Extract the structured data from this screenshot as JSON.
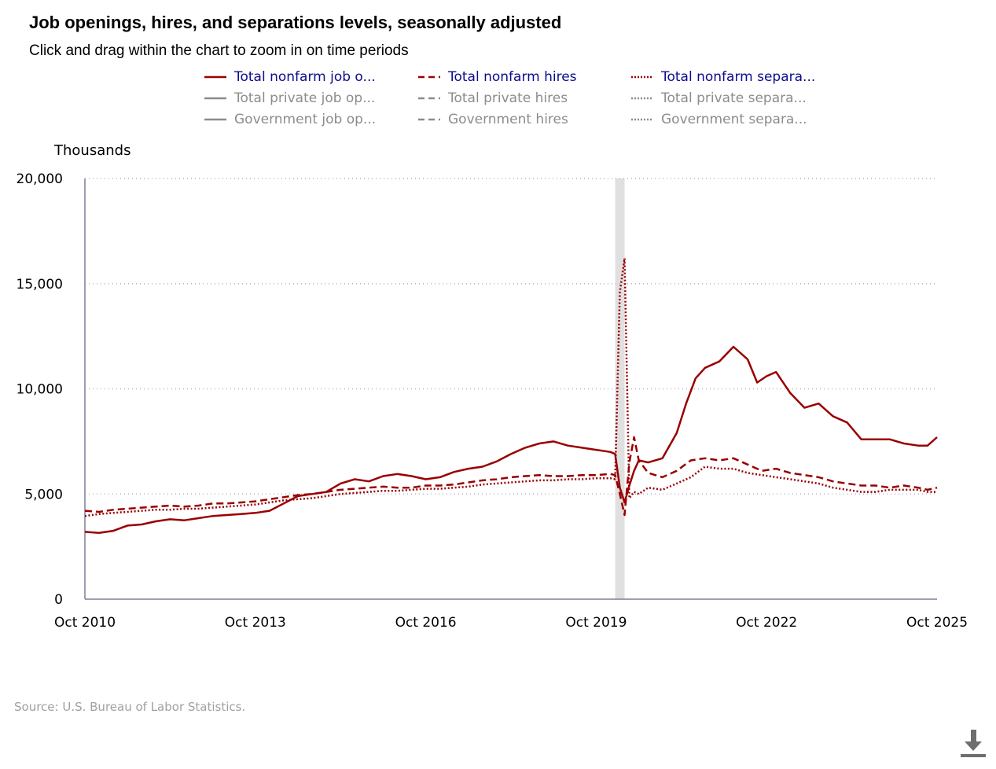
{
  "header": {
    "title": "Job openings, hires, and separations levels, seasonally adjusted",
    "subtitle": "Click and drag within the chart to zoom in on time periods"
  },
  "legend": [
    {
      "label": "Total nonfarm job o...",
      "style": "solid",
      "active": true
    },
    {
      "label": "Total nonfarm hires",
      "style": "dashed",
      "active": true
    },
    {
      "label": "Total nonfarm separa...",
      "style": "dotted",
      "active": true
    },
    {
      "label": "Total private job op...",
      "style": "solid",
      "active": false
    },
    {
      "label": "Total private hires",
      "style": "dashed",
      "active": false
    },
    {
      "label": "Total private separa...",
      "style": "dotted",
      "active": false
    },
    {
      "label": "Government job op...",
      "style": "solid",
      "active": false
    },
    {
      "label": "Government hires",
      "style": "dashed",
      "active": false
    },
    {
      "label": "Government separa...",
      "style": "dotted",
      "active": false
    }
  ],
  "colors": {
    "active_series": "#990000",
    "inactive_series": "#8c8c8c",
    "recession_band": "#e0e0e0",
    "gridline": "#b4b4c8"
  },
  "icons": {
    "download": "download-icon"
  },
  "source": "Source: U.S. Bureau of Labor Statistics.",
  "chart_data": {
    "type": "line",
    "ylabel": "Thousands",
    "xlabel": "",
    "ylim": [
      0,
      20000
    ],
    "y_ticks": [
      "0",
      "5,000",
      "10,000",
      "15,000",
      "20,000"
    ],
    "y_tick_values": [
      0,
      5000,
      10000,
      15000,
      20000
    ],
    "x_ticks": [
      "Oct 2010",
      "Oct 2013",
      "Oct 2016",
      "Oct 2019",
      "Oct 2022",
      "Oct 2025"
    ],
    "x_range": [
      "2010-10",
      "2025-10"
    ],
    "grid": "horizontal dotted",
    "recession_shading": [
      "2020-02",
      "2020-04"
    ],
    "series": [
      {
        "name": "Total nonfarm job o...",
        "style": "solid",
        "points": [
          [
            "2010-10",
            3200
          ],
          [
            "2011-01",
            3150
          ],
          [
            "2011-04",
            3250
          ],
          [
            "2011-07",
            3500
          ],
          [
            "2011-10",
            3550
          ],
          [
            "2012-01",
            3700
          ],
          [
            "2012-04",
            3800
          ],
          [
            "2012-07",
            3750
          ],
          [
            "2012-10",
            3850
          ],
          [
            "2013-01",
            3950
          ],
          [
            "2013-04",
            4000
          ],
          [
            "2013-07",
            4050
          ],
          [
            "2013-10",
            4100
          ],
          [
            "2014-01",
            4200
          ],
          [
            "2014-04",
            4550
          ],
          [
            "2014-07",
            4900
          ],
          [
            "2014-10",
            5000
          ],
          [
            "2015-01",
            5100
          ],
          [
            "2015-04",
            5500
          ],
          [
            "2015-07",
            5700
          ],
          [
            "2015-10",
            5600
          ],
          [
            "2016-01",
            5850
          ],
          [
            "2016-04",
            5950
          ],
          [
            "2016-07",
            5850
          ],
          [
            "2016-10",
            5700
          ],
          [
            "2017-01",
            5800
          ],
          [
            "2017-04",
            6050
          ],
          [
            "2017-07",
            6200
          ],
          [
            "2017-10",
            6300
          ],
          [
            "2018-01",
            6550
          ],
          [
            "2018-04",
            6900
          ],
          [
            "2018-07",
            7200
          ],
          [
            "2018-10",
            7400
          ],
          [
            "2019-01",
            7500
          ],
          [
            "2019-04",
            7300
          ],
          [
            "2019-07",
            7200
          ],
          [
            "2019-10",
            7100
          ],
          [
            "2020-01",
            7000
          ],
          [
            "2020-02",
            6900
          ],
          [
            "2020-03",
            5300
          ],
          [
            "2020-04",
            4600
          ],
          [
            "2020-05",
            5400
          ],
          [
            "2020-06",
            6100
          ],
          [
            "2020-07",
            6600
          ],
          [
            "2020-09",
            6500
          ],
          [
            "2020-12",
            6700
          ],
          [
            "2021-03",
            7900
          ],
          [
            "2021-05",
            9300
          ],
          [
            "2021-07",
            10500
          ],
          [
            "2021-09",
            11000
          ],
          [
            "2021-12",
            11300
          ],
          [
            "2022-03",
            12000
          ],
          [
            "2022-06",
            11400
          ],
          [
            "2022-08",
            10300
          ],
          [
            "2022-10",
            10600
          ],
          [
            "2022-12",
            10800
          ],
          [
            "2023-03",
            9800
          ],
          [
            "2023-06",
            9100
          ],
          [
            "2023-09",
            9300
          ],
          [
            "2023-12",
            8700
          ],
          [
            "2024-03",
            8400
          ],
          [
            "2024-06",
            7600
          ],
          [
            "2024-09",
            7600
          ],
          [
            "2024-12",
            7600
          ],
          [
            "2025-03",
            7400
          ],
          [
            "2025-06",
            7300
          ],
          [
            "2025-08",
            7300
          ],
          [
            "2025-10",
            7700
          ]
        ]
      },
      {
        "name": "Total nonfarm hires",
        "style": "dashed",
        "points": [
          [
            "2010-10",
            4200
          ],
          [
            "2011-01",
            4150
          ],
          [
            "2011-04",
            4250
          ],
          [
            "2011-07",
            4300
          ],
          [
            "2011-10",
            4350
          ],
          [
            "2012-01",
            4400
          ],
          [
            "2012-04",
            4450
          ],
          [
            "2012-07",
            4400
          ],
          [
            "2012-10",
            4450
          ],
          [
            "2013-01",
            4550
          ],
          [
            "2013-04",
            4550
          ],
          [
            "2013-07",
            4600
          ],
          [
            "2013-10",
            4650
          ],
          [
            "2014-01",
            4750
          ],
          [
            "2014-04",
            4850
          ],
          [
            "2014-07",
            4950
          ],
          [
            "2014-10",
            5000
          ],
          [
            "2015-01",
            5100
          ],
          [
            "2015-04",
            5200
          ],
          [
            "2015-07",
            5250
          ],
          [
            "2015-10",
            5300
          ],
          [
            "2016-01",
            5350
          ],
          [
            "2016-04",
            5300
          ],
          [
            "2016-07",
            5300
          ],
          [
            "2016-10",
            5400
          ],
          [
            "2017-01",
            5400
          ],
          [
            "2017-04",
            5450
          ],
          [
            "2017-07",
            5550
          ],
          [
            "2017-10",
            5650
          ],
          [
            "2018-01",
            5700
          ],
          [
            "2018-04",
            5800
          ],
          [
            "2018-07",
            5850
          ],
          [
            "2018-10",
            5900
          ],
          [
            "2019-01",
            5850
          ],
          [
            "2019-04",
            5850
          ],
          [
            "2019-07",
            5900
          ],
          [
            "2019-10",
            5900
          ],
          [
            "2020-01",
            5950
          ],
          [
            "2020-02",
            5900
          ],
          [
            "2020-03",
            5000
          ],
          [
            "2020-04",
            4000
          ],
          [
            "2020-05",
            6500
          ],
          [
            "2020-06",
            7700
          ],
          [
            "2020-07",
            6600
          ],
          [
            "2020-09",
            6000
          ],
          [
            "2020-12",
            5800
          ],
          [
            "2021-03",
            6100
          ],
          [
            "2021-06",
            6600
          ],
          [
            "2021-09",
            6700
          ],
          [
            "2021-12",
            6600
          ],
          [
            "2022-03",
            6700
          ],
          [
            "2022-06",
            6400
          ],
          [
            "2022-09",
            6100
          ],
          [
            "2022-12",
            6200
          ],
          [
            "2023-03",
            6000
          ],
          [
            "2023-06",
            5900
          ],
          [
            "2023-09",
            5800
          ],
          [
            "2023-12",
            5600
          ],
          [
            "2024-03",
            5500
          ],
          [
            "2024-06",
            5400
          ],
          [
            "2024-09",
            5400
          ],
          [
            "2024-12",
            5300
          ],
          [
            "2025-03",
            5400
          ],
          [
            "2025-06",
            5300
          ],
          [
            "2025-08",
            5200
          ],
          [
            "2025-10",
            5300
          ]
        ]
      },
      {
        "name": "Total nonfarm separa...",
        "style": "dotted",
        "points": [
          [
            "2010-10",
            3950
          ],
          [
            "2011-01",
            4050
          ],
          [
            "2011-04",
            4100
          ],
          [
            "2011-07",
            4150
          ],
          [
            "2011-10",
            4200
          ],
          [
            "2012-01",
            4250
          ],
          [
            "2012-04",
            4250
          ],
          [
            "2012-07",
            4300
          ],
          [
            "2012-10",
            4300
          ],
          [
            "2013-01",
            4350
          ],
          [
            "2013-04",
            4400
          ],
          [
            "2013-07",
            4450
          ],
          [
            "2013-10",
            4500
          ],
          [
            "2014-01",
            4600
          ],
          [
            "2014-04",
            4700
          ],
          [
            "2014-07",
            4750
          ],
          [
            "2014-10",
            4800
          ],
          [
            "2015-01",
            4900
          ],
          [
            "2015-04",
            5000
          ],
          [
            "2015-07",
            5050
          ],
          [
            "2015-10",
            5100
          ],
          [
            "2016-01",
            5150
          ],
          [
            "2016-04",
            5150
          ],
          [
            "2016-07",
            5200
          ],
          [
            "2016-10",
            5250
          ],
          [
            "2017-01",
            5250
          ],
          [
            "2017-04",
            5300
          ],
          [
            "2017-07",
            5350
          ],
          [
            "2017-10",
            5450
          ],
          [
            "2018-01",
            5500
          ],
          [
            "2018-04",
            5550
          ],
          [
            "2018-07",
            5600
          ],
          [
            "2018-10",
            5650
          ],
          [
            "2019-01",
            5650
          ],
          [
            "2019-04",
            5700
          ],
          [
            "2019-07",
            5700
          ],
          [
            "2019-10",
            5750
          ],
          [
            "2020-01",
            5750
          ],
          [
            "2020-02",
            5700
          ],
          [
            "2020-03",
            14600
          ],
          [
            "2020-04",
            16200
          ],
          [
            "2020-05",
            4800
          ],
          [
            "2020-06",
            5100
          ],
          [
            "2020-07",
            5000
          ],
          [
            "2020-09",
            5300
          ],
          [
            "2020-12",
            5200
          ],
          [
            "2021-03",
            5500
          ],
          [
            "2021-06",
            5800
          ],
          [
            "2021-09",
            6300
          ],
          [
            "2021-12",
            6200
          ],
          [
            "2022-03",
            6200
          ],
          [
            "2022-06",
            6000
          ],
          [
            "2022-09",
            5900
          ],
          [
            "2022-12",
            5800
          ],
          [
            "2023-03",
            5700
          ],
          [
            "2023-06",
            5600
          ],
          [
            "2023-09",
            5500
          ],
          [
            "2023-12",
            5300
          ],
          [
            "2024-03",
            5200
          ],
          [
            "2024-06",
            5100
          ],
          [
            "2024-09",
            5100
          ],
          [
            "2024-12",
            5200
          ],
          [
            "2025-03",
            5200
          ],
          [
            "2025-06",
            5200
          ],
          [
            "2025-08",
            5100
          ],
          [
            "2025-10",
            5100
          ]
        ]
      }
    ]
  }
}
